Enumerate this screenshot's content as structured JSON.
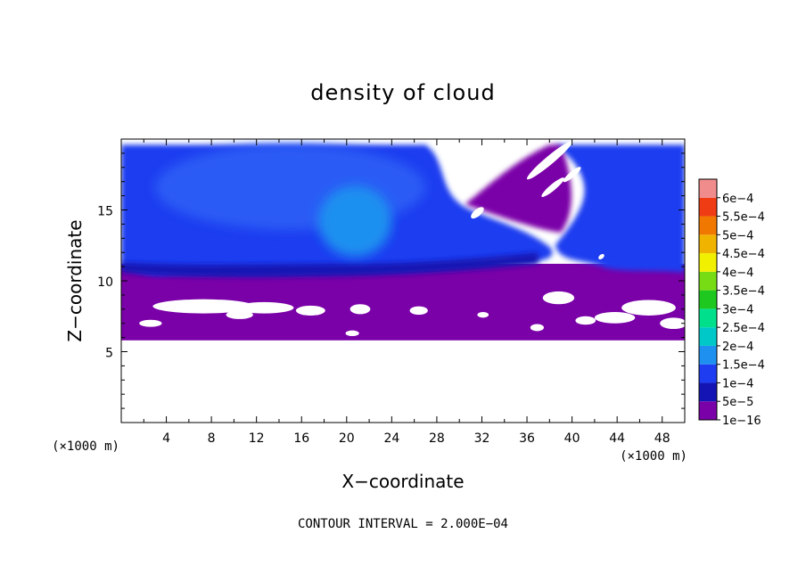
{
  "chart_data": {
    "type": "heatmap",
    "title": "density of cloud",
    "xlabel": "X−coordinate",
    "ylabel": "Z−coordinate",
    "x_unit": "(×1000 m)",
    "y_unit": "(×1000 m)",
    "xlim": [
      0,
      50
    ],
    "ylim": [
      0,
      20
    ],
    "x_ticks": [
      4,
      8,
      12,
      16,
      20,
      24,
      28,
      32,
      36,
      40,
      44,
      48
    ],
    "y_ticks": [
      5,
      10,
      15
    ],
    "contour_note": "CONTOUR INTERVAL = 2.000E−04",
    "colorbar": {
      "levels": [
        "1e−16",
        "5e−5",
        "1e−4",
        "1.5e−4",
        "2e−4",
        "2.5e−4",
        "3e−4",
        "3.5e−4",
        "4e−4",
        "4.5e−4",
        "5e−4",
        "5.5e−4",
        "6e−4"
      ],
      "colors": [
        "#7a00a8",
        "#1414b4",
        "#1e3cf0",
        "#1e90f0",
        "#00c8c8",
        "#00e08c",
        "#1ec81e",
        "#78dc14",
        "#f0f000",
        "#f0b400",
        "#f07800",
        "#f03c14",
        "#f08c8c"
      ]
    },
    "fields": [
      {
        "name": "cloud_layer_base",
        "zmin": 5.8,
        "zmax": 10.6,
        "color": "#7a00a8"
      },
      {
        "name": "upper_cloud_mass",
        "zmin": 10.6,
        "zmax": 19.6,
        "color": "#1e3cf0"
      },
      {
        "name": "core_region",
        "xmin": 17.5,
        "xmax": 24,
        "zmin": 11,
        "zmax": 16,
        "color": "#1e90f0"
      },
      {
        "name": "lower_edge_band",
        "zmin": 10.2,
        "zmax": 11.2,
        "color": "#1414b4"
      }
    ]
  }
}
